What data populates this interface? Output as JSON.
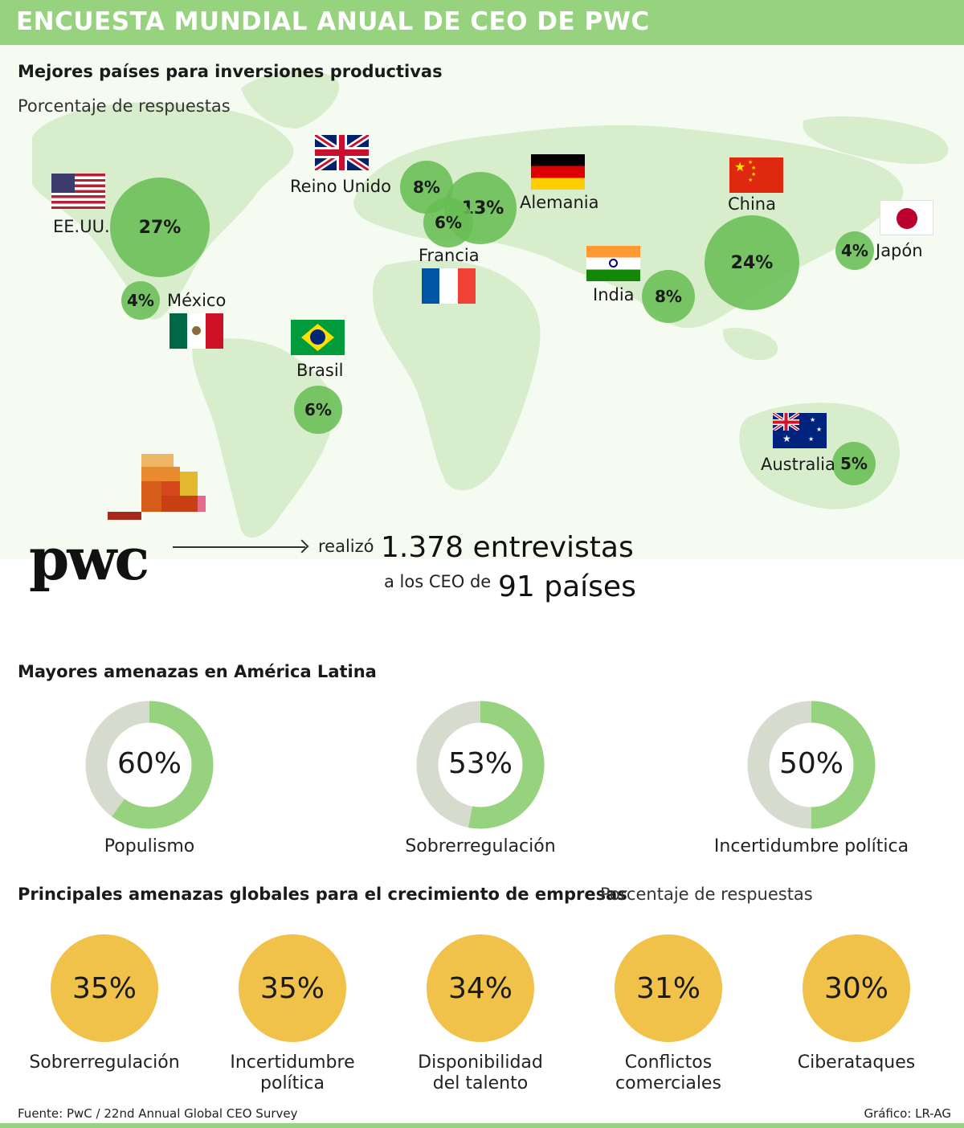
{
  "header": {
    "title": "ENCUESTA MUNDIAL ANUAL DE CEO DE PWC"
  },
  "section1": {
    "title": "Mejores países para inversiones productivas",
    "subtitle": "Porcentaje de respuestas"
  },
  "section2": {
    "title": "Mayores amenazas en América Latina"
  },
  "section3": {
    "title": "Principales amenazas globales para el crecimiento de empresas",
    "subtitle": "Porcentaje de respuestas"
  },
  "pwc": {
    "logo_text": "pwc",
    "verb": "realizó",
    "interviews": "1.378 entrevistas",
    "ceo_text": "a los CEO de",
    "countries": "91 países"
  },
  "colors": {
    "header": "#97d27e",
    "bubble": "#68be54",
    "donut_fill": "#97d27e",
    "donut_track": "#d5dccd",
    "global_circle": "#f0c24a"
  },
  "chart_data": [
    {
      "type": "scatter",
      "title": "Mejores países para inversiones productivas",
      "subtitle": "Porcentaje de respuestas",
      "points": [
        {
          "country": "EE.UU.",
          "value": 27,
          "label": "27%",
          "flag": "us-flag-icon"
        },
        {
          "country": "México",
          "value": 4,
          "label": "4%",
          "flag": "mexico-flag-icon"
        },
        {
          "country": "Brasil",
          "value": 6,
          "label": "6%",
          "flag": "brazil-flag-icon"
        },
        {
          "country": "Reino Unido",
          "value": 8,
          "label": "8%",
          "flag": "uk-flag-icon"
        },
        {
          "country": "Alemania",
          "value": 13,
          "label": "13%",
          "flag": "germany-flag-icon"
        },
        {
          "country": "Francia",
          "value": 6,
          "label": "6%",
          "flag": "france-flag-icon"
        },
        {
          "country": "India",
          "value": 8,
          "label": "8%",
          "flag": "india-flag-icon"
        },
        {
          "country": "China",
          "value": 24,
          "label": "24%",
          "flag": "china-flag-icon"
        },
        {
          "country": "Japón",
          "value": 4,
          "label": "4%",
          "flag": "japan-flag-icon"
        },
        {
          "country": "Australia",
          "value": 5,
          "label": "5%",
          "flag": "australia-flag-icon"
        }
      ]
    },
    {
      "type": "pie",
      "title": "Mayores amenazas en América Latina",
      "categories": [
        "Populismo",
        "Sobrerregulación",
        "Incertidumbre política"
      ],
      "values": [
        60,
        53,
        50
      ],
      "labels": [
        "60%",
        "53%",
        "50%"
      ]
    },
    {
      "type": "bar",
      "title": "Principales amenazas globales para el crecimiento de empresas",
      "subtitle": "Porcentaje de respuestas",
      "categories": [
        "Sobrerregulación",
        "Incertidumbre política",
        "Disponibilidad del talento",
        "Conflictos comerciales",
        "Ciberataques"
      ],
      "values": [
        35,
        35,
        34,
        31,
        30
      ],
      "labels": [
        "35%",
        "35%",
        "34%",
        "31%",
        "30%"
      ]
    }
  ],
  "footer": {
    "source": "Fuente: PwC / 22nd Annual Global CEO Survey",
    "credit": "Gráfico: LR-AG"
  }
}
